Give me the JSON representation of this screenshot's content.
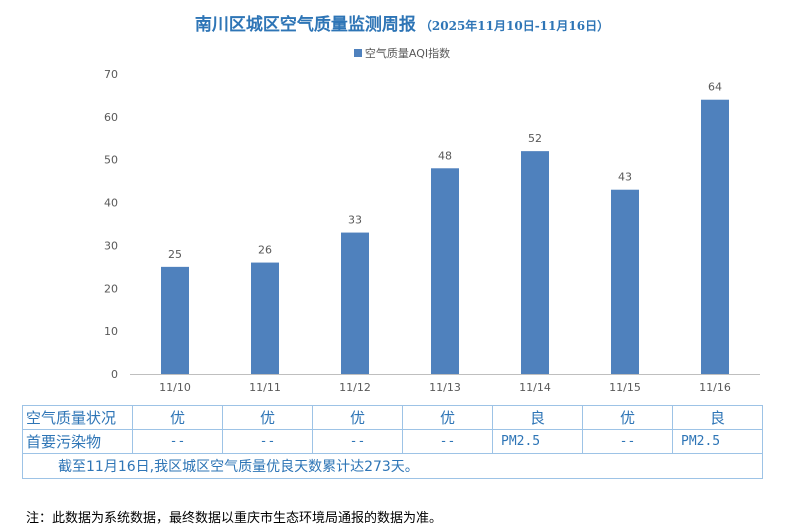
{
  "title": "南川区城区空气质量监测周报",
  "subtitle": "（2025年11月10日-11月16日）",
  "legend_label": "空气质量AQI指数",
  "colors": {
    "bar": "#4f81bd",
    "title": "#2e75b6",
    "table_border": "#9dc3e6"
  },
  "chart_data": {
    "type": "bar",
    "categories": [
      "11/10",
      "11/11",
      "11/12",
      "11/13",
      "11/14",
      "11/15",
      "11/16"
    ],
    "series": [
      {
        "name": "空气质量AQI指数",
        "values": [
          25,
          26,
          33,
          48,
          52,
          43,
          64
        ]
      }
    ],
    "yticks": [
      0,
      10,
      20,
      30,
      40,
      50,
      60,
      70
    ],
    "ylim": [
      0,
      70
    ],
    "grid": false,
    "legend": "top"
  },
  "table": {
    "quality_header": "空气质量状况",
    "quality": [
      "优",
      "优",
      "优",
      "优",
      "良",
      "优",
      "良"
    ],
    "pollutant_header": "首要污染物",
    "pollutant": [
      "--",
      "--",
      "--",
      "--",
      "PM2.5",
      "--",
      "PM2.5"
    ],
    "summary": "截至11月16日,我区城区空气质量优良天数累计达273天。"
  },
  "note": "注：此数据为系统数据，最终数据以重庆市生态环境局通报的数据为准。"
}
